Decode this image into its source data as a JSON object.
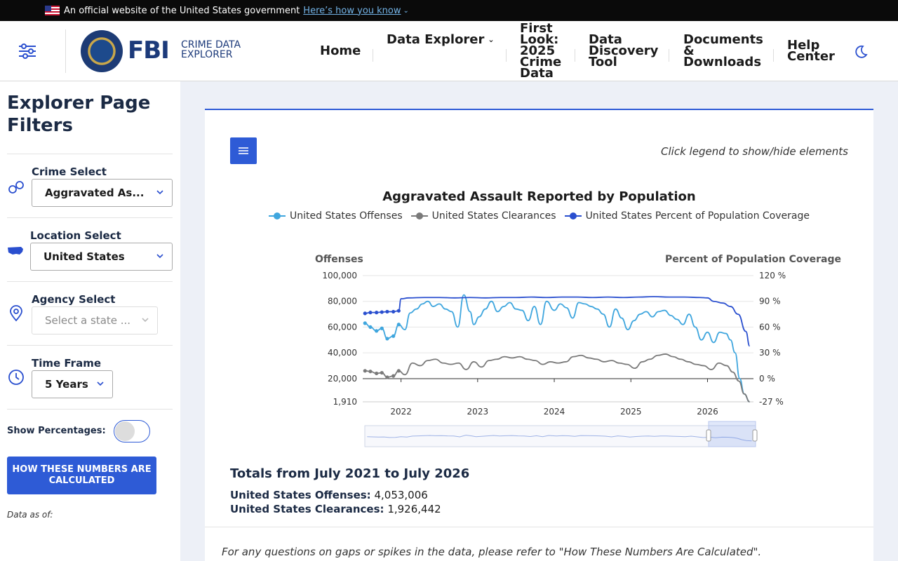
{
  "gov_banner": {
    "text": "An official website of the United States government",
    "link": "Here’s how you know"
  },
  "header": {
    "logo_text": "FBI",
    "logo_sub": "CRIME DATA EXPLORER",
    "nav": {
      "home": "Home",
      "data_explorer": "Data Explorer",
      "first_look": "First Look: 2025 Crime Data",
      "discovery": "Data Discovery Tool",
      "docs": "Documents & Downloads",
      "help": "Help Center"
    }
  },
  "sidebar": {
    "title": "Explorer Page Filters",
    "crime_label": "Crime Select",
    "crime_value": "Aggravated As...",
    "location_label": "Location Select",
    "location_value": "United States",
    "agency_label": "Agency Select",
    "agency_placeholder": "Select a state ...",
    "time_label": "Time Frame",
    "time_value": "5 Years",
    "pct_label": "Show Percentages:",
    "how_button": "HOW THESE NUMBERS ARE CALCULATED",
    "data_as_of": "Data as of:"
  },
  "main": {
    "legend_hint": "Click legend to show/hide elements",
    "totals_title": "Totals from July 2021 to July 2026",
    "offenses_label": "United States Offenses:",
    "offenses_value": "4,053,006",
    "clearances_label": "United States Clearances:",
    "clearances_value": "1,926,442",
    "footnote": "For any questions on gaps or spikes in the data, please refer to \"How These Numbers Are Calculated\"."
  },
  "colors": {
    "offenses": "#3fa6de",
    "clearances": "#7a7a7a",
    "coverage": "#2a4fcf",
    "accent": "#2e5bd6"
  },
  "chart_data": {
    "type": "line",
    "title": "Aggravated Assault Reported by Population",
    "ylabel_left": "Offenses",
    "ylabel_right": "Percent of Population Coverage",
    "ylim_left": [
      1910,
      100000
    ],
    "ylim_right": [
      -27,
      120
    ],
    "yticks_left": [
      "100,000",
      "80,000",
      "60,000",
      "40,000",
      "20,000",
      "1,910"
    ],
    "yticks_right": [
      "120 %",
      "90 %",
      "60 %",
      "30 %",
      "0 %",
      "-27 %"
    ],
    "xticks": [
      "2022",
      "2023",
      "2024",
      "2025",
      "2026"
    ],
    "xlim": [
      2021.5,
      2026.6
    ],
    "legend_position": "top-center",
    "series": [
      {
        "name": "United States Offenses",
        "axis": "left",
        "x": [
          2021.53,
          2021.6,
          2021.68,
          2021.75,
          2021.82,
          2021.9,
          2021.97,
          2022.05,
          2022.12,
          2022.2,
          2022.28,
          2022.35,
          2022.42,
          2022.5,
          2022.58,
          2022.66,
          2022.74,
          2022.82,
          2022.9,
          2022.95,
          2023.02,
          2023.1,
          2023.18,
          2023.26,
          2023.34,
          2023.42,
          2023.5,
          2023.58,
          2023.66,
          2023.74,
          2023.82,
          2023.9,
          2024.0,
          2024.08,
          2024.16,
          2024.24,
          2024.32,
          2024.4,
          2024.48,
          2024.56,
          2024.64,
          2024.72,
          2024.8,
          2024.88,
          2024.96,
          2025.04,
          2025.12,
          2025.2,
          2025.28,
          2025.36,
          2025.44,
          2025.52,
          2025.6,
          2025.68,
          2025.76,
          2025.84,
          2025.92,
          2026.0,
          2026.08,
          2026.16,
          2026.24,
          2026.3,
          2026.36,
          2026.42,
          2026.48,
          2026.55
        ],
        "values": [
          63000,
          60000,
          57000,
          59000,
          51000,
          53000,
          62000,
          58000,
          71000,
          74000,
          78000,
          80000,
          76000,
          78000,
          74000,
          72000,
          60000,
          85000,
          72000,
          62000,
          68000,
          74000,
          80000,
          72000,
          76000,
          79000,
          74000,
          73000,
          65000,
          76000,
          62000,
          80000,
          73000,
          78000,
          75000,
          67000,
          79000,
          78000,
          76000,
          74000,
          70000,
          60000,
          74000,
          67000,
          58000,
          65000,
          70000,
          72000,
          68000,
          72000,
          73000,
          69000,
          66000,
          62000,
          70000,
          60000,
          50000,
          56000,
          48000,
          56000,
          55000,
          50000,
          40000,
          20000,
          8000,
          1910
        ]
      },
      {
        "name": "United States Clearances",
        "axis": "left",
        "x": [
          2021.53,
          2021.6,
          2021.68,
          2021.75,
          2021.82,
          2021.9,
          2021.97,
          2022.05,
          2022.15,
          2022.25,
          2022.35,
          2022.45,
          2022.55,
          2022.65,
          2022.75,
          2022.85,
          2022.95,
          2023.05,
          2023.15,
          2023.25,
          2023.35,
          2023.45,
          2023.55,
          2023.65,
          2023.75,
          2023.85,
          2023.95,
          2024.05,
          2024.15,
          2024.25,
          2024.35,
          2024.45,
          2024.55,
          2024.65,
          2024.75,
          2024.85,
          2024.95,
          2025.05,
          2025.15,
          2025.25,
          2025.35,
          2025.45,
          2025.55,
          2025.65,
          2025.75,
          2025.85,
          2025.95,
          2026.05,
          2026.15,
          2026.25,
          2026.33,
          2026.41,
          2026.48,
          2026.55
        ],
        "values": [
          26000,
          25500,
          24000,
          24500,
          21000,
          22000,
          26000,
          23000,
          32000,
          30000,
          34000,
          35000,
          32000,
          31000,
          32000,
          27000,
          33000,
          29000,
          34000,
          35000,
          37000,
          36000,
          37000,
          35000,
          34000,
          31000,
          33000,
          32000,
          33000,
          37000,
          38000,
          36000,
          35000,
          33000,
          34000,
          32000,
          31000,
          28000,
          33000,
          35000,
          38000,
          39000,
          37000,
          35000,
          33000,
          31000,
          30000,
          27000,
          32000,
          30000,
          25000,
          18000,
          8000,
          1910
        ]
      },
      {
        "name": "United States Percent of Population Coverage",
        "axis": "right",
        "x": [
          2021.53,
          2021.6,
          2021.68,
          2021.75,
          2021.82,
          2021.9,
          2021.97,
          2022.0,
          2022.1,
          2022.3,
          2022.5,
          2022.7,
          2022.9,
          2023.1,
          2023.3,
          2023.5,
          2023.7,
          2023.9,
          2024.1,
          2024.3,
          2024.5,
          2024.7,
          2024.9,
          2025.1,
          2025.3,
          2025.5,
          2025.7,
          2025.9,
          2026.0,
          2026.08,
          2026.2,
          2026.3,
          2026.4,
          2026.5,
          2026.55
        ],
        "values": [
          76,
          77,
          77,
          77.5,
          78,
          78,
          79,
          93,
          94,
          94.5,
          94.5,
          94,
          94.5,
          94,
          94.5,
          94.5,
          95,
          94.5,
          95,
          95,
          94.5,
          95,
          94.5,
          95,
          95.5,
          95,
          95,
          94.5,
          94,
          90,
          88,
          84,
          75,
          55,
          38
        ]
      }
    ]
  }
}
